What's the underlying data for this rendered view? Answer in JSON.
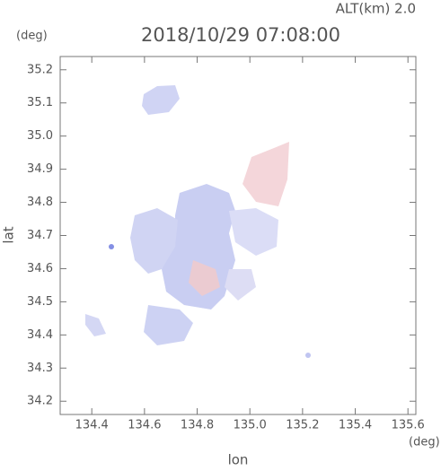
{
  "chart_data": {
    "type": "map",
    "title": "2018/10/29 07:08:00",
    "subtitle": "ALT(km) 2.0",
    "xlabel": "lon",
    "ylabel": "lat",
    "x_unit": "(deg)",
    "y_unit": "(deg)",
    "xlim": [
      134.28,
      135.63
    ],
    "ylim": [
      34.16,
      35.24
    ],
    "xticks": [
      134.4,
      134.6,
      134.8,
      {
        "value": 135.0,
        "label": "135.0"
      },
      135.2,
      135.4,
      135.6
    ],
    "yticks": [
      34.2,
      34.3,
      34.4,
      34.5,
      34.6,
      34.7,
      34.8,
      34.9,
      {
        "value": 35.0,
        "label": "35.0"
      },
      35.1,
      35.2
    ]
  }
}
